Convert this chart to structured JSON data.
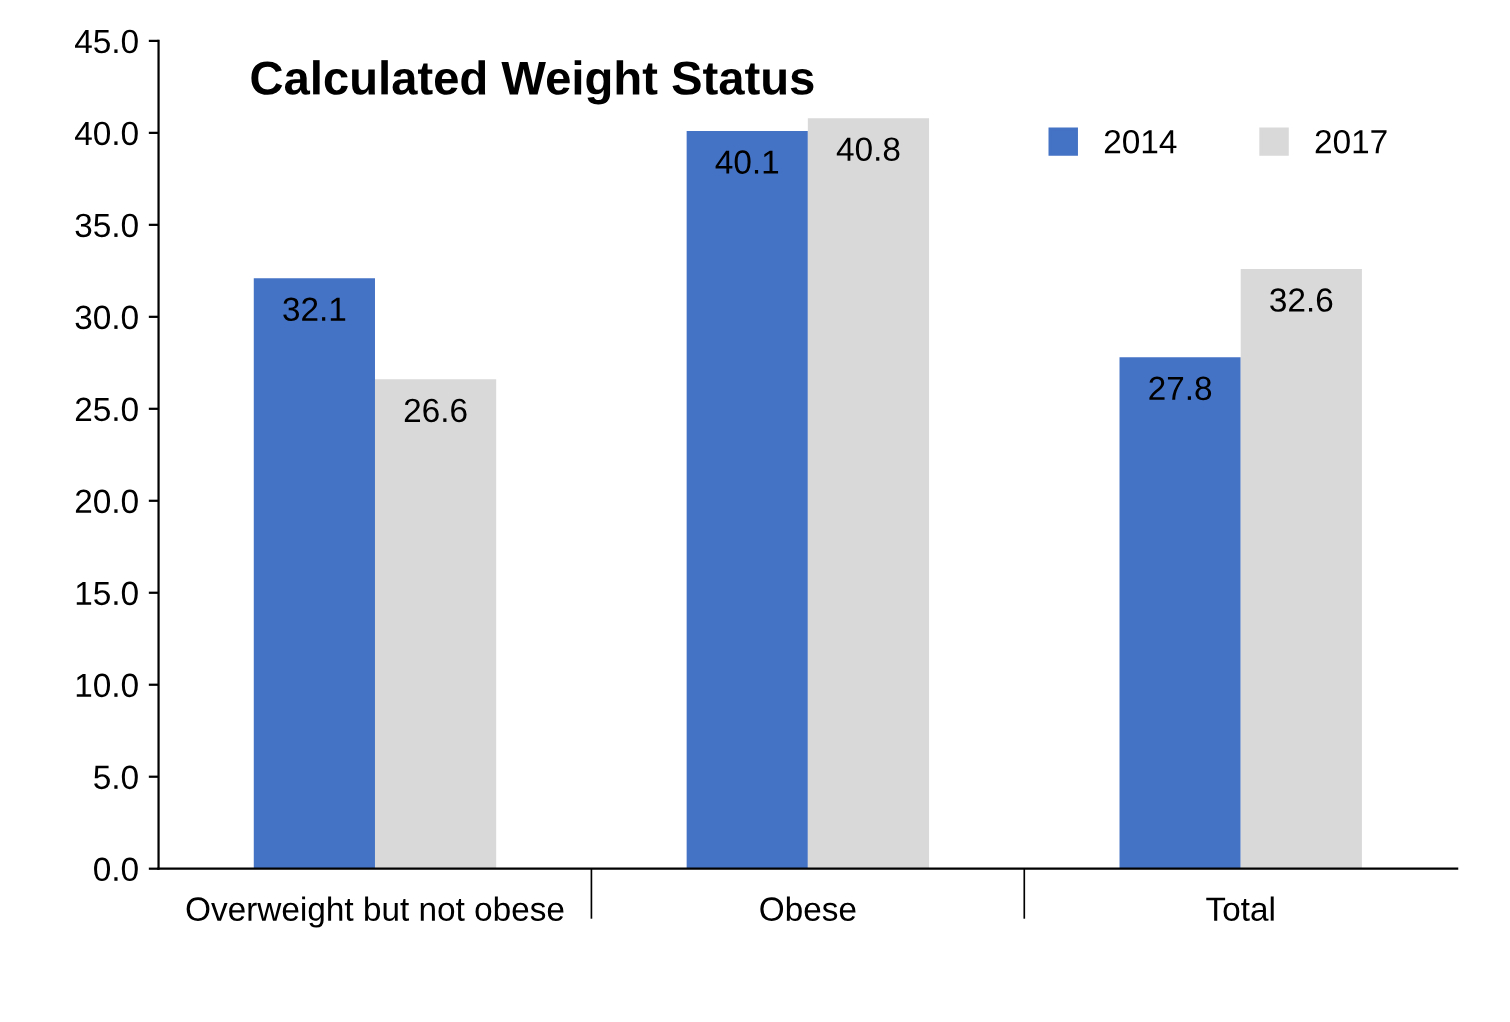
{
  "chart_data": {
    "type": "bar",
    "title": "Calculated Weight Status",
    "categories": [
      "Overweight but not obese",
      "Obese",
      "Total"
    ],
    "series": [
      {
        "name": "2014",
        "color": "#4472c4",
        "values": [
          32.1,
          40.1,
          27.8
        ]
      },
      {
        "name": "2017",
        "color": "#d9d9d9",
        "values": [
          26.6,
          40.8,
          32.6
        ]
      }
    ],
    "ylim": [
      0,
      45
    ],
    "yticks": [
      {
        "value": 0,
        "label": "0.0"
      },
      {
        "value": 5,
        "label": "5.0"
      },
      {
        "value": 10,
        "label": "10.0"
      },
      {
        "value": 15,
        "label": "15.0"
      },
      {
        "value": 20,
        "label": "20.0"
      },
      {
        "value": 25,
        "label": "25.0"
      },
      {
        "value": 30,
        "label": "30.0"
      },
      {
        "value": 35,
        "label": "35.0"
      },
      {
        "value": 40,
        "label": "40.0"
      },
      {
        "value": 45,
        "label": "45.0"
      }
    ],
    "grid": false,
    "legend": "top right",
    "data_labels": true
  }
}
